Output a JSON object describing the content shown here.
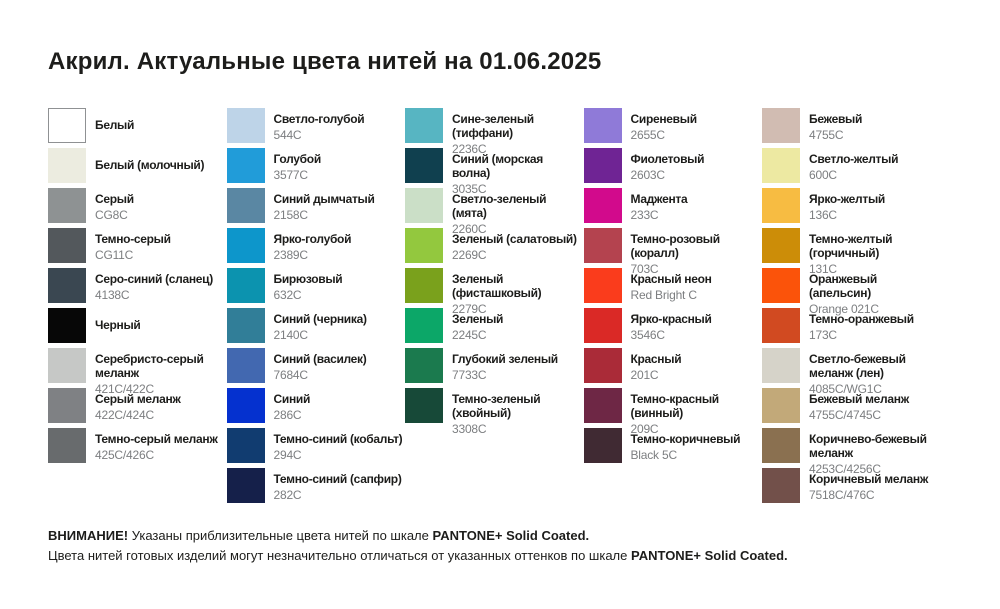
{
  "title": "Акрил. Актуальные цвета нитей на 01.06.2025",
  "text_color": "#1d1d1b",
  "code_text_color": "#7c7e80",
  "columns": [
    {
      "name": "grays",
      "items": [
        {
          "label": "Белый",
          "code": "",
          "hex": "#ffffff",
          "border": true
        },
        {
          "label": "Белый (молочный)",
          "code": "",
          "hex": "#ecece0"
        },
        {
          "label": "Серый",
          "code": "CG8C",
          "hex": "#8e9293"
        },
        {
          "label": "Темно-серый",
          "code": "CG11C",
          "hex": "#53585c"
        },
        {
          "label": "Серо-синий (сланец)",
          "code": "4138C",
          "hex": "#3a4751"
        },
        {
          "label": "Черный",
          "code": "",
          "hex": "#070707"
        },
        {
          "label": "Серебристо-серый\nмеланж",
          "code": "421C/422C",
          "hex": "#c6c8c6"
        },
        {
          "label": "Серый меланж",
          "code": "422C/424C",
          "hex": "#7f8184"
        },
        {
          "label": "Темно-серый меланж",
          "code": "425C/426C",
          "hex": "#686b6d"
        }
      ]
    },
    {
      "name": "blues",
      "items": [
        {
          "label": "Светло-голубой",
          "code": "544C",
          "hex": "#bed4e8"
        },
        {
          "label": "Голубой",
          "code": "3577C",
          "hex": "#219cd9"
        },
        {
          "label": "Синий дымчатый",
          "code": "2158C",
          "hex": "#5a87a3"
        },
        {
          "label": "Ярко-голубой",
          "code": "2389C",
          "hex": "#0d96cb"
        },
        {
          "label": "Бирюзовый",
          "code": "632C",
          "hex": "#0c93af"
        },
        {
          "label": "Синий (черника)",
          "code": "2140C",
          "hex": "#317e98"
        },
        {
          "label": "Синий (василек)",
          "code": "7684C",
          "hex": "#4268b0"
        },
        {
          "label": "Синий",
          "code": "286C",
          "hex": "#0531cf"
        },
        {
          "label": "Темно-синий (кобальт)",
          "code": "294C",
          "hex": "#113c70"
        },
        {
          "label": "Темно-синий (сапфир)",
          "code": "282C",
          "hex": "#15204a"
        }
      ]
    },
    {
      "name": "greens",
      "items": [
        {
          "label": "Сине-зеленый (тиффани)",
          "code": "2236C",
          "hex": "#57b5c2"
        },
        {
          "label": "Синий (морская волна)",
          "code": "3035C",
          "hex": "#10404f"
        },
        {
          "label": "Светло-зеленый (мята)",
          "code": "2260C",
          "hex": "#cbdfc7"
        },
        {
          "label": "Зеленый (салатовый)",
          "code": "2269C",
          "hex": "#93c83e"
        },
        {
          "label": "Зеленый (фисташковый)",
          "code": "2279C",
          "hex": "#7aa11c"
        },
        {
          "label": "Зеленый",
          "code": "2245C",
          "hex": "#0ca768"
        },
        {
          "label": "Глубокий зеленый",
          "code": "7733C",
          "hex": "#1b7a4e"
        },
        {
          "label": "Темно-зеленый (хвойный)",
          "code": "3308C",
          "hex": "#174938"
        }
      ]
    },
    {
      "name": "purples-reds",
      "items": [
        {
          "label": "Сиреневый",
          "code": "2655C",
          "hex": "#8f7ad8"
        },
        {
          "label": "Фиолетовый",
          "code": "2603C",
          "hex": "#6f2494"
        },
        {
          "label": "Маджента",
          "code": "233C",
          "hex": "#d20a8c"
        },
        {
          "label": "Темно-розовый (коралл)",
          "code": "703C",
          "hex": "#b4434f"
        },
        {
          "label": "Красный неон",
          "code": "Red Bright C",
          "hex": "#fa3c1c"
        },
        {
          "label": "Ярко-красный",
          "code": "3546C",
          "hex": "#da2926"
        },
        {
          "label": "Красный",
          "code": "201C",
          "hex": "#aa2b38"
        },
        {
          "label": "Темно-красный (винный)",
          "code": "209C",
          "hex": "#6e2745"
        },
        {
          "label": "Темно-коричневый",
          "code": "Black 5C",
          "hex": "#402a33"
        }
      ]
    },
    {
      "name": "yellows-browns",
      "items": [
        {
          "label": "Бежевый",
          "code": "4755C",
          "hex": "#d1bcb2"
        },
        {
          "label": "Светло-желтый",
          "code": "600C",
          "hex": "#ede9a2"
        },
        {
          "label": "Ярко-желтый",
          "code": "136C",
          "hex": "#f7bc42"
        },
        {
          "label": "Темно-желтый (горчичный)",
          "code": "131C",
          "hex": "#cc8d08"
        },
        {
          "label": "Оранжевый (апельсин)",
          "code": "Orange 021C",
          "hex": "#fb530a"
        },
        {
          "label": "Темно-оранжевый",
          "code": "173C",
          "hex": "#d14a21"
        },
        {
          "label": "Светло-бежевый меланж (лен)",
          "code": "4085C/WG1C",
          "hex": "#d6d3c9"
        },
        {
          "label": "Бежевый меланж",
          "code": "4755C/4745C",
          "hex": "#c2a979"
        },
        {
          "label": "Коричнево-бежевый меланж",
          "code": "4253C/4256C",
          "hex": "#8a7050"
        },
        {
          "label": "Коричневый меланж",
          "code": "7518C/476C",
          "hex": "#72504a"
        }
      ]
    }
  ],
  "footer": {
    "lines": [
      [
        {
          "text": "ВНИМАНИЕ!",
          "bold": true
        },
        {
          "text": " Указаны приблизительные цвета нитей по шкале ",
          "bold": false
        },
        {
          "text": "PANTONE+ Solid Coated.",
          "bold": true
        }
      ],
      [
        {
          "text": "Цвета нитей готовых изделий могут незначительно отличаться от указанных оттенков по шкале ",
          "bold": false
        },
        {
          "text": "PANTONE+ Solid Coated.",
          "bold": true
        }
      ]
    ]
  }
}
